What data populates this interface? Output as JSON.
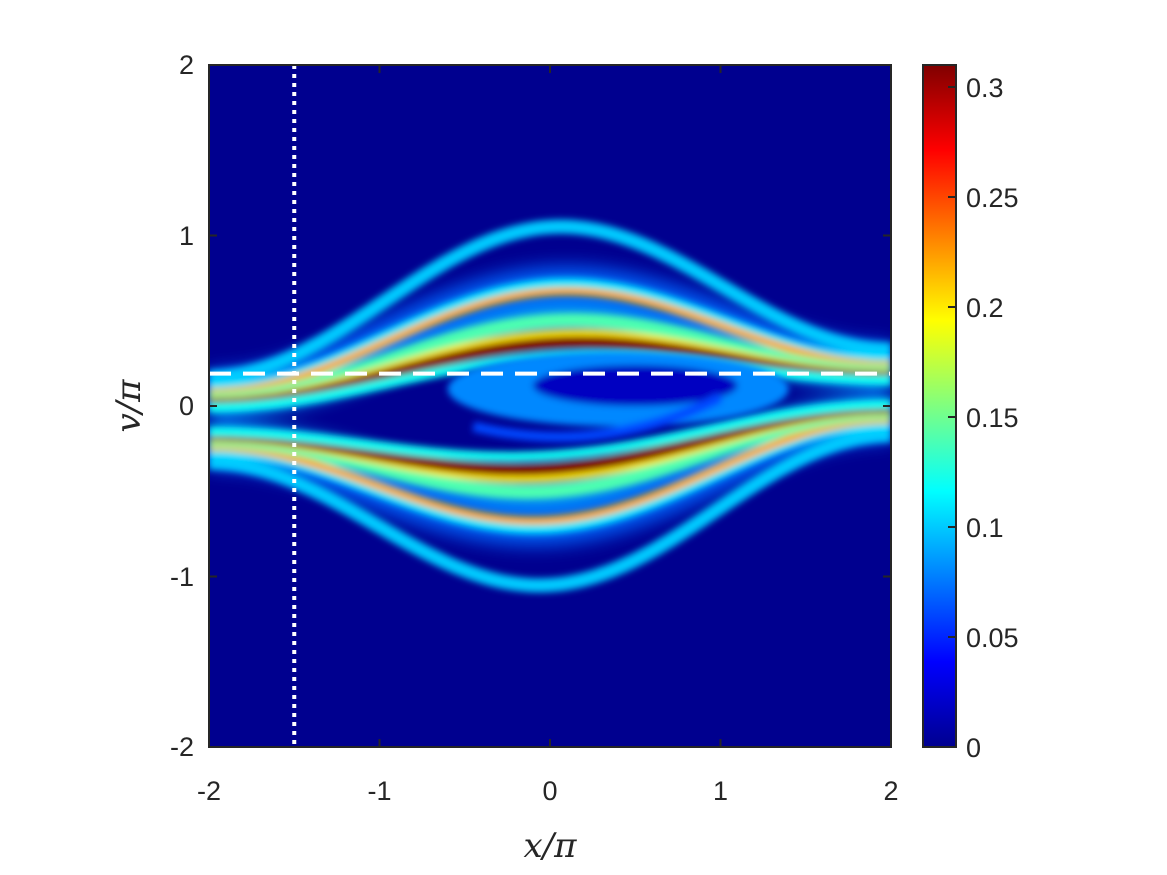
{
  "chart_data": {
    "type": "heatmap",
    "title": "",
    "xlabel": "x/π",
    "ylabel": "v/π",
    "xlim": [
      -2,
      2
    ],
    "ylim": [
      -2,
      2
    ],
    "x_ticks": [
      "-2",
      "-1",
      "0",
      "1",
      "2"
    ],
    "y_ticks": [
      "-2",
      "-1",
      "0",
      "1",
      "2"
    ],
    "colormap": "jet",
    "colorbar": {
      "range": [
        0,
        0.31
      ],
      "ticks": [
        "0",
        "0.05",
        "0.1",
        "0.15",
        "0.2",
        "0.25",
        "0.3"
      ],
      "tick_values": [
        0,
        0.05,
        0.1,
        0.15,
        0.2,
        0.25,
        0.3
      ]
    },
    "background_value": 0,
    "features": {
      "inner_separatrix_bands": {
        "amplitude_v": 0.37,
        "value": 0.31
      },
      "middle_bands": {
        "amplitude_v": 0.5,
        "value": 0.14
      },
      "outer_bands": {
        "amplitude_v": 0.7,
        "value": 0.22
      },
      "outermost_bands": {
        "amplitude_v": 1.05,
        "value": 0.1
      },
      "trapped_vortex": {
        "center_x": 0.4,
        "center_v": 0.1,
        "value": 0.08
      }
    },
    "reference_lines": [
      {
        "orientation": "vertical",
        "x": -1.5,
        "style": "dotted",
        "color": "#ffffff"
      },
      {
        "orientation": "horizontal",
        "y": 0.19,
        "style": "dashed",
        "color": "#ffffff"
      }
    ]
  }
}
